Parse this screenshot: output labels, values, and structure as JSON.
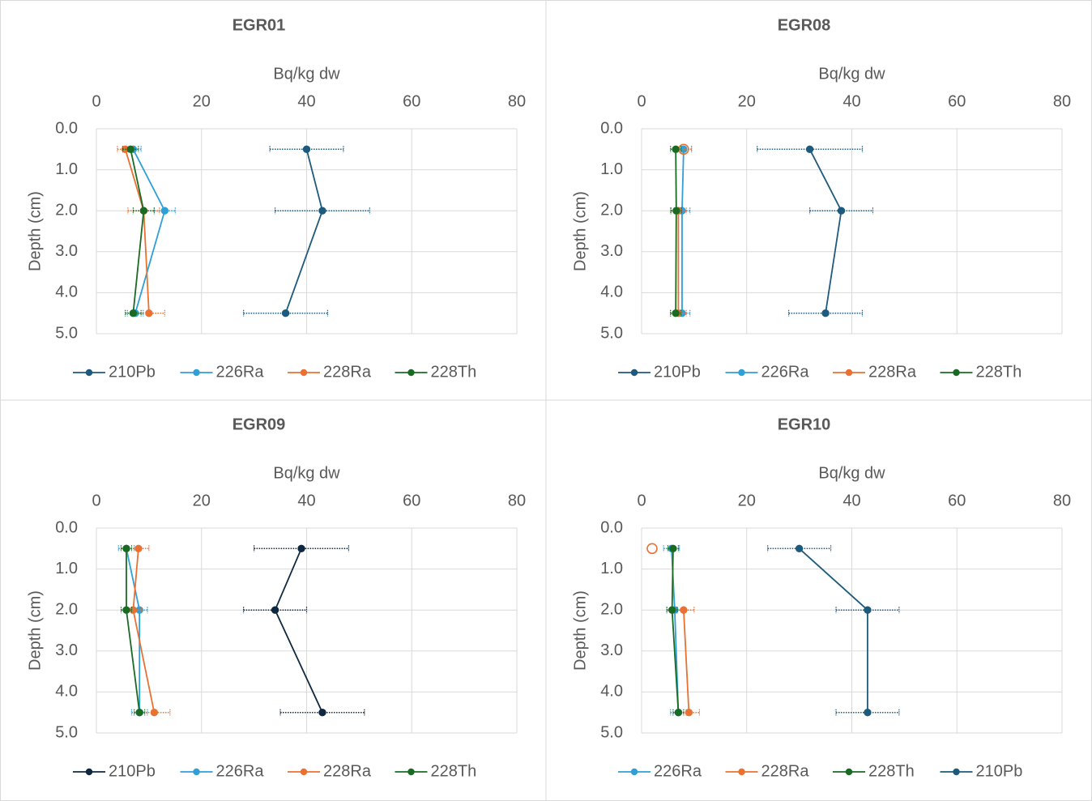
{
  "chart_data": [
    {
      "type": "line",
      "title": "EGR01",
      "xlabel": "Bq/kg dw",
      "ylabel": "Depth (cm)",
      "xlim": [
        0,
        80
      ],
      "xticks": [
        0,
        20,
        40,
        60,
        80
      ],
      "xaxis_top": true,
      "ylim": [
        0,
        5
      ],
      "y_inverted": true,
      "yticks": [
        {
          "value": 0,
          "label": "0.0"
        },
        {
          "value": 1,
          "label": "1.0"
        },
        {
          "value": 2,
          "label": "2.0"
        },
        {
          "value": 3,
          "label": "3.0"
        },
        {
          "value": 4,
          "label": "4.0"
        },
        {
          "value": 5,
          "label": "5.0"
        }
      ],
      "grid": true,
      "legend": "bottom",
      "series": [
        {
          "name": "210Pb",
          "color": "#1d5a7d",
          "x": [
            40,
            43,
            36
          ],
          "y": [
            0.5,
            2.0,
            4.5
          ],
          "xerr": [
            7,
            9,
            8
          ]
        },
        {
          "name": "226Ra",
          "color": "#2f9fd8",
          "x": [
            7,
            13,
            7.4
          ],
          "y": [
            0.5,
            2.0,
            4.5
          ],
          "xerr": [
            1.5,
            2,
            1.5
          ]
        },
        {
          "name": "228Ra",
          "color": "#e97132",
          "x": [
            5.5,
            9,
            10
          ],
          "y": [
            0.5,
            2.0,
            4.5
          ],
          "xerr": [
            1.5,
            3,
            3
          ]
        },
        {
          "name": "228Th",
          "color": "#196b24",
          "x": [
            6.5,
            9,
            7
          ],
          "y": [
            0.5,
            2.0,
            4.5
          ],
          "xerr": [
            1.5,
            2,
            1.5
          ]
        }
      ]
    },
    {
      "type": "line",
      "title": "EGR08",
      "xlabel": "Bq/kg dw",
      "ylabel": "Depth (cm)",
      "xlim": [
        0,
        80
      ],
      "xticks": [
        0,
        20,
        40,
        60,
        80
      ],
      "xaxis_top": true,
      "ylim": [
        0,
        5
      ],
      "y_inverted": true,
      "yticks": [
        {
          "value": 0,
          "label": "0.0"
        },
        {
          "value": 1,
          "label": "1.0"
        },
        {
          "value": 2,
          "label": "2.0"
        },
        {
          "value": 3,
          "label": "3.0"
        },
        {
          "value": 4,
          "label": "4.0"
        },
        {
          "value": 5,
          "label": "5.0"
        }
      ],
      "grid": true,
      "legend": "bottom",
      "series": [
        {
          "name": "210Pb",
          "color": "#1d5a7d",
          "x": [
            32,
            38,
            35
          ],
          "y": [
            0.5,
            2.0,
            4.5
          ],
          "xerr": [
            10,
            6,
            7
          ]
        },
        {
          "name": "226Ra",
          "color": "#2f9fd8",
          "x": [
            8,
            7.7,
            7.7
          ],
          "y": [
            0.5,
            2.0,
            4.5
          ],
          "xerr": [
            1.5,
            1.5,
            1.5
          ]
        },
        {
          "name": "228Ra",
          "color": "#e97132",
          "x": [
            8,
            7,
            7
          ],
          "y": [
            0.5,
            2.0,
            4.5
          ],
          "xerr": [
            1.5,
            1.5,
            1.5
          ],
          "open_markers": [
            0
          ]
        },
        {
          "name": "228Th",
          "color": "#196b24",
          "x": [
            6.5,
            6.6,
            6.5
          ],
          "y": [
            0.5,
            2.0,
            4.5
          ],
          "xerr": [
            1,
            1,
            1
          ]
        }
      ]
    },
    {
      "type": "line",
      "title": "EGR09",
      "xlabel": "Bq/kg dw",
      "ylabel": "Depth (cm)",
      "xlim": [
        0,
        80
      ],
      "xticks": [
        0,
        20,
        40,
        60,
        80
      ],
      "xaxis_top": true,
      "ylim": [
        0,
        5
      ],
      "y_inverted": true,
      "yticks": [
        {
          "value": 0,
          "label": "0.0"
        },
        {
          "value": 1,
          "label": "1.0"
        },
        {
          "value": 2,
          "label": "2.0"
        },
        {
          "value": 3,
          "label": "3.0"
        },
        {
          "value": 4,
          "label": "4.0"
        },
        {
          "value": 5,
          "label": "5.0"
        }
      ],
      "grid": true,
      "legend": "bottom",
      "series": [
        {
          "name": "210Pb",
          "color": "#0e2841",
          "x": [
            39,
            34,
            43
          ],
          "y": [
            0.5,
            2.0,
            4.5
          ],
          "xerr": [
            9,
            6,
            8
          ]
        },
        {
          "name": "226Ra",
          "color": "#2f9fd8",
          "x": [
            5.7,
            8.2,
            8.2
          ],
          "y": [
            0.5,
            2.0,
            4.5
          ],
          "xerr": [
            1.5,
            1.5,
            1.5
          ]
        },
        {
          "name": "228Ra",
          "color": "#e97132",
          "x": [
            8,
            7,
            11
          ],
          "y": [
            0.5,
            2.0,
            4.5
          ],
          "xerr": [
            2,
            1.5,
            3
          ]
        },
        {
          "name": "228Th",
          "color": "#196b24",
          "x": [
            5.7,
            5.7,
            8.2
          ],
          "y": [
            0.5,
            2.0,
            4.5
          ],
          "xerr": [
            1,
            1,
            1
          ]
        }
      ]
    },
    {
      "type": "line",
      "title": "EGR10",
      "xlabel": "Bq/kg dw",
      "ylabel": "Depth (cm)",
      "xlim": [
        0,
        80
      ],
      "xticks": [
        0,
        20,
        40,
        60,
        80
      ],
      "xaxis_top": true,
      "ylim": [
        0,
        5
      ],
      "y_inverted": true,
      "yticks": [
        {
          "value": 0,
          "label": "0.0"
        },
        {
          "value": 1,
          "label": "1.0"
        },
        {
          "value": 2,
          "label": "2.0"
        },
        {
          "value": 3,
          "label": "3.0"
        },
        {
          "value": 4,
          "label": "4.0"
        },
        {
          "value": 5,
          "label": "5.0"
        }
      ],
      "grid": true,
      "legend": "bottom",
      "series": [
        {
          "name": "226Ra",
          "color": "#2f9fd8",
          "x": [
            5.7,
            6.3,
            7
          ],
          "y": [
            0.5,
            2.0,
            4.5
          ],
          "xerr": [
            1.5,
            1.5,
            1.5
          ]
        },
        {
          "name": "228Ra",
          "color": "#e97132",
          "x": [
            2,
            8,
            9
          ],
          "y": [
            0.5,
            2.0,
            4.5
          ],
          "xerr": [
            null,
            2,
            2
          ],
          "open_markers": [
            0
          ]
        },
        {
          "name": "228Th",
          "color": "#196b24",
          "x": [
            6,
            5.8,
            7
          ],
          "y": [
            0.5,
            2.0,
            4.5
          ],
          "xerr": [
            1,
            1,
            1
          ]
        },
        {
          "name": "210Pb",
          "color": "#1d5a7d",
          "x": [
            30,
            43,
            43
          ],
          "y": [
            0.5,
            2.0,
            4.5
          ],
          "xerr": [
            6,
            6,
            6
          ]
        }
      ]
    }
  ]
}
